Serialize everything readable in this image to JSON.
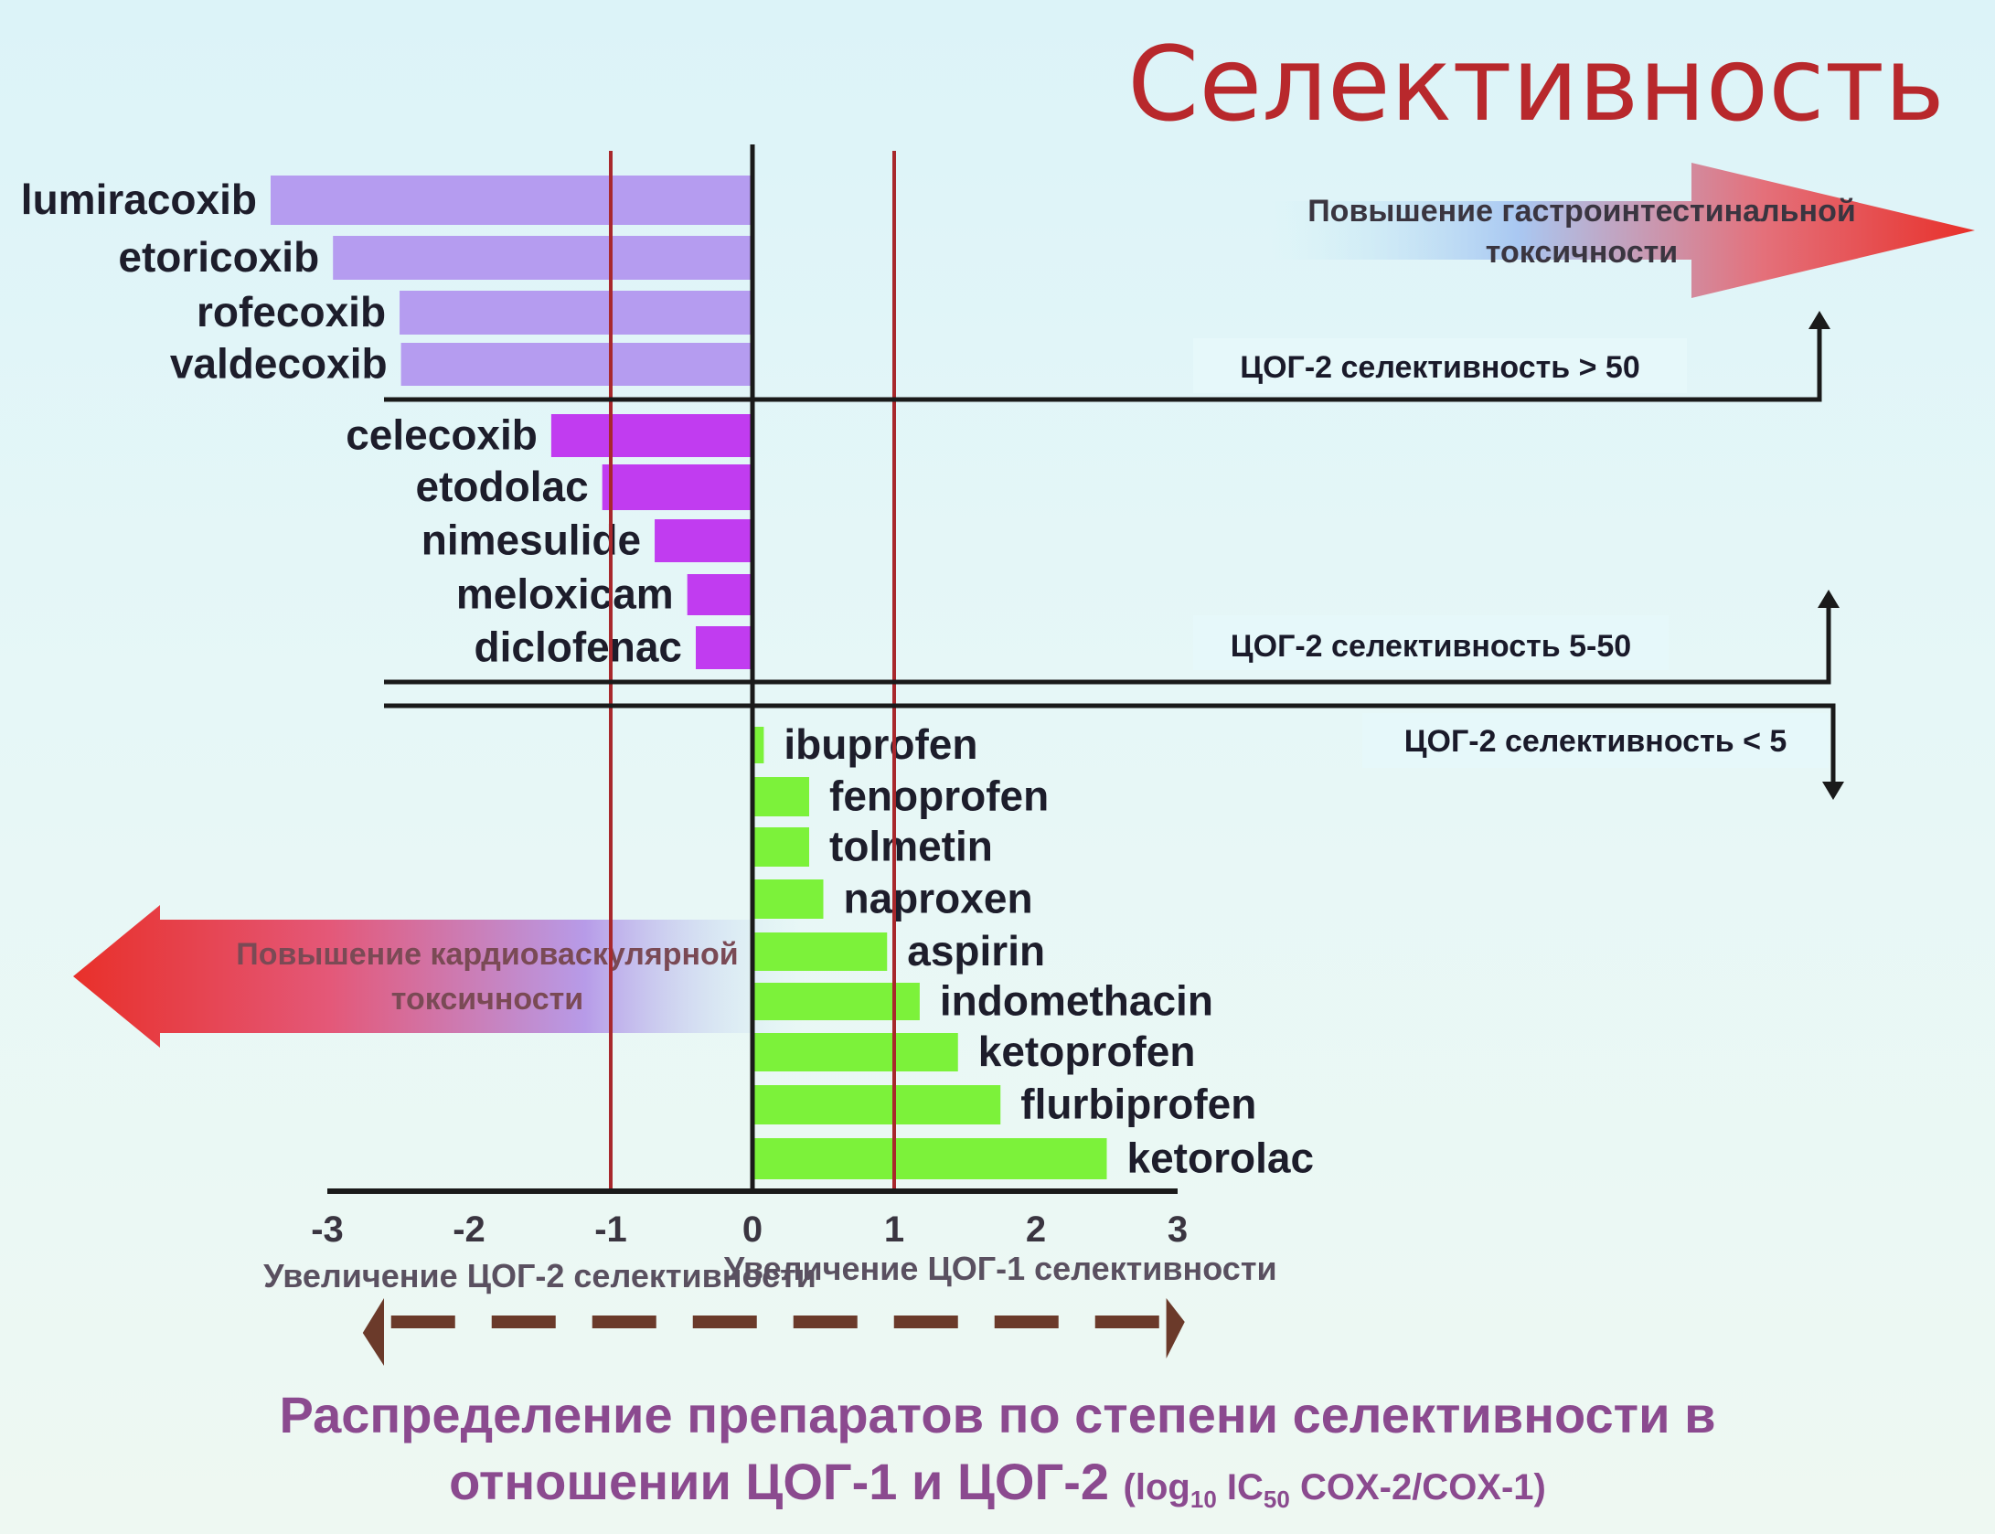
{
  "slide": {
    "title": "Селективность",
    "caption_line1": "Распределение препаратов по степени селективности в",
    "caption_line2_main": "отношении ЦОГ-1 и ЦОГ-2",
    "caption_line2_small_pre": "(log",
    "caption_line2_sub1": "10",
    "caption_line2_small_mid": " IC",
    "caption_line2_sub2": "50",
    "caption_line2_small_post": " COX-2/COX-1)"
  },
  "chart_data": {
    "type": "bar",
    "orientation": "horizontal",
    "x_axis": {
      "range": [
        -3,
        3
      ],
      "ticks": [
        -3,
        -2,
        -1,
        0,
        1,
        2,
        3
      ],
      "tick_labels": [
        "-3",
        "-2",
        "-1",
        "0",
        "1",
        "2",
        "3"
      ],
      "label_left": "Увеличение ЦОГ-2 селективности",
      "label_right": "Увеличение ЦОГ-1 селективности"
    },
    "reference_lines": [
      -1,
      1
    ],
    "groups": [
      {
        "label": "ЦОГ-2 селективность > 50",
        "color": "#b59cf0",
        "items": [
          {
            "name": "lumiracoxib",
            "value": -3.4
          },
          {
            "name": "etoricoxib",
            "value": -2.96
          },
          {
            "name": "rofecoxib",
            "value": -2.49
          },
          {
            "name": "valdecoxib",
            "value": -2.48
          }
        ]
      },
      {
        "label": "ЦОГ-2 селективность 5-50",
        "color": "#c13cf0",
        "items": [
          {
            "name": "celecoxib",
            "value": -1.42
          },
          {
            "name": "etodolac",
            "value": -1.06
          },
          {
            "name": "nimesulide",
            "value": -0.69
          },
          {
            "name": "meloxicam",
            "value": -0.46
          },
          {
            "name": "diclofenac",
            "value": -0.4
          }
        ]
      },
      {
        "label": "ЦОГ-2 селективность < 5",
        "color": "#7cf23a",
        "items": [
          {
            "name": "ibuprofen",
            "value": 0.08
          },
          {
            "name": "fenoprofen",
            "value": 0.4
          },
          {
            "name": "tolmetin",
            "value": 0.4
          },
          {
            "name": "naproxen",
            "value": 0.5
          },
          {
            "name": "aspirin",
            "value": 0.95
          },
          {
            "name": "indomethacin",
            "value": 1.18
          },
          {
            "name": "ketoprofen",
            "value": 1.45
          },
          {
            "name": "flurbiprofen",
            "value": 1.75
          },
          {
            "name": "ketorolac",
            "value": 2.5
          }
        ]
      }
    ],
    "annotations": {
      "gi_arrow": [
        "Повышение гастроинтестинальной",
        "токсичности"
      ],
      "cv_arrow": [
        "Повышение кардиоваскулярной",
        "токсичности"
      ]
    },
    "colors": {
      "axis": "#1a1a1a",
      "reference_line": "#a8282c",
      "arrow_red": "#e8302a",
      "dash_arrow": "#6b3a2a",
      "label_text": "#1d1d2b"
    }
  }
}
